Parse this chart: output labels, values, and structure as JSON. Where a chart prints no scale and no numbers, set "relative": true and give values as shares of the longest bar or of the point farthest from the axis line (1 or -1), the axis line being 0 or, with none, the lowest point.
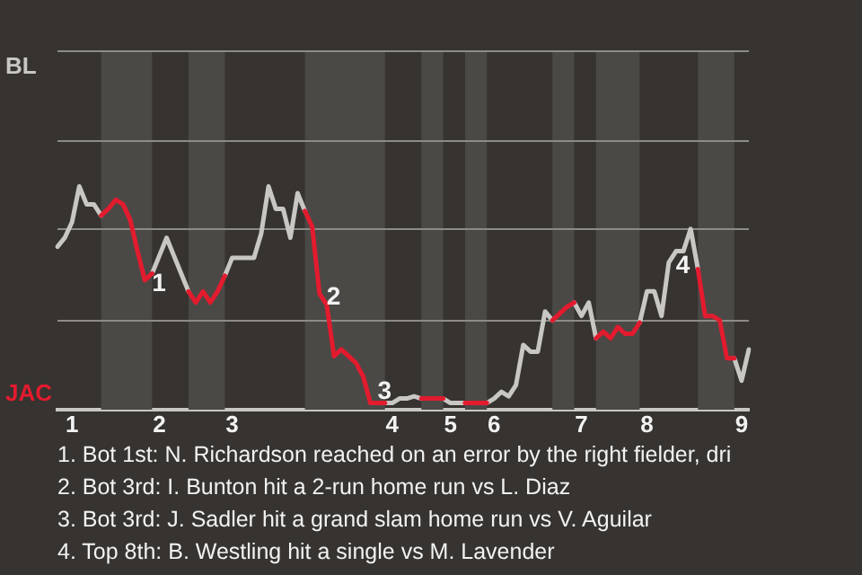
{
  "chart_data": {
    "type": "line",
    "relative": true,
    "categories": [
      null,
      null,
      "1",
      null,
      null,
      null,
      null,
      null,
      null,
      null,
      null,
      null,
      null,
      null,
      "2",
      null,
      null,
      null,
      null,
      null,
      null,
      null,
      null,
      null,
      "3",
      null,
      null,
      null,
      null,
      null,
      null,
      null,
      null,
      null,
      null,
      null,
      null,
      null,
      null,
      null,
      null,
      null,
      null,
      null,
      null,
      null,
      "4",
      null,
      null,
      null,
      null,
      null,
      null,
      null,
      "5",
      null,
      null,
      null,
      null,
      null,
      "6",
      null,
      null,
      null,
      null,
      null,
      null,
      null,
      null,
      null,
      null,
      null,
      "7",
      null,
      null,
      null,
      null,
      null,
      null,
      null,
      null,
      "8",
      null,
      null,
      null,
      null,
      null,
      null,
      null,
      null,
      null,
      null,
      null,
      null,
      "9",
      null
    ],
    "series": [
      {
        "color": "#c9c7c3",
        "values": [
          0.73,
          0.77,
          0.84,
          1,
          0.92,
          0.92,
          0.87,
          null,
          null,
          null,
          null,
          null,
          null,
          0.61,
          0.69,
          0.77,
          0.69,
          0.61,
          0.53,
          null,
          null,
          null,
          null,
          0.6,
          0.68,
          0.68,
          0.68,
          0.68,
          0.79,
          1,
          0.9,
          0.9,
          0.77,
          0.97,
          0.89,
          null,
          null,
          null,
          null,
          null,
          null,
          null,
          null,
          null,
          null,
          0.03,
          0.03,
          0.05,
          0.05,
          0.06,
          0.05,
          null,
          null,
          0.05,
          0.03,
          0.03,
          0.03,
          null,
          null,
          0.03,
          0.05,
          0.08,
          0.06,
          0.11,
          0.29,
          0.26,
          0.26,
          0.44,
          0.4,
          null,
          null,
          0.48,
          0.42,
          0.48,
          0.32,
          null,
          null,
          null,
          null,
          null,
          0.39,
          0.53,
          0.53,
          0.42,
          0.66,
          0.71,
          0.71,
          0.81,
          0.63,
          null,
          null,
          null,
          null,
          0.23,
          0.13,
          0.27
        ]
      },
      {
        "color": "#e31b2f",
        "values": [
          null,
          null,
          null,
          null,
          null,
          null,
          0.87,
          0.9,
          0.94,
          0.92,
          0.85,
          0.71,
          0.58,
          0.61,
          null,
          null,
          null,
          null,
          0.53,
          0.48,
          0.53,
          0.48,
          0.53,
          0.6,
          null,
          null,
          null,
          null,
          null,
          null,
          null,
          null,
          null,
          null,
          0.89,
          0.82,
          0.52,
          0.47,
          0.24,
          0.27,
          0.24,
          0.21,
          0.15,
          0.03,
          0.03,
          0.03,
          null,
          null,
          null,
          null,
          0.05,
          0.05,
          0.05,
          0.05,
          null,
          null,
          0.03,
          0.03,
          0.03,
          0.03,
          null,
          null,
          null,
          null,
          null,
          null,
          null,
          null,
          0.4,
          0.43,
          0.46,
          0.48,
          null,
          null,
          0.32,
          0.35,
          0.32,
          0.37,
          0.34,
          0.34,
          0.39,
          null,
          null,
          null,
          null,
          null,
          null,
          null,
          0.63,
          0.42,
          0.42,
          0.4,
          0.23,
          0.23,
          null,
          null
        ]
      }
    ],
    "ref_lines": [
      {
        "axis": "y",
        "value": 0.4,
        "color": "#8d8b88"
      },
      {
        "axis": "y",
        "value": 0.81,
        "color": "#8d8b88"
      },
      {
        "axis": "y",
        "value": 1.21,
        "color": "#8d8b88"
      },
      {
        "axis": "y",
        "value": 1.61,
        "color": "#8d8b88"
      }
    ],
    "annotations": [
      "BL",
      "JAC",
      "1",
      "2",
      "3",
      "4",
      "1. Bot 1st: N. Richardson reached on an error by the right fielder, dri",
      "2. Bot 3rd: I. Bunton hit a 2-run home run vs L. Diaz",
      "3. Bot 3rd: J. Sadler hit a grand slam home run vs V. Aguilar",
      "4. Top 8th: B. Westling hit a single vs M. Lavender"
    ]
  }
}
